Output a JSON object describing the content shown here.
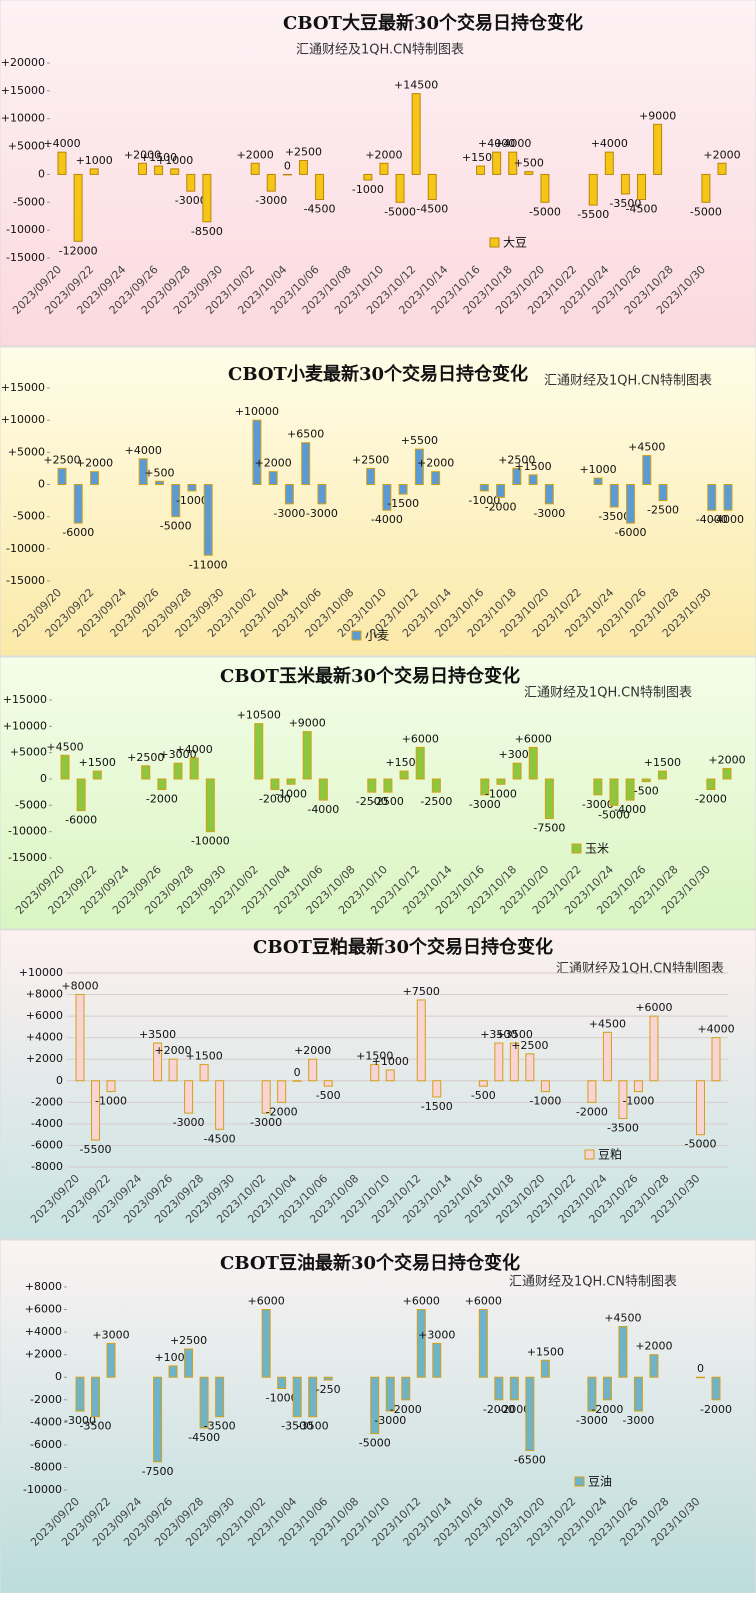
{
  "chart_data": [
    {
      "type": "bar",
      "title": "CBOT大豆最新30个交易日持仓变化",
      "subtitle": "汇通财经及1QH.CN特制图表",
      "categories": [
        "2023/09/20",
        null,
        "2023/09/22",
        null,
        "2023/09/24",
        null,
        "2023/09/26",
        null,
        "2023/09/28",
        null,
        "2023/09/30",
        null,
        "2023/10/02",
        null,
        "2023/10/04",
        null,
        "2023/10/06",
        null,
        "2023/10/08",
        null,
        "2023/10/10",
        null,
        "2023/10/12",
        null,
        "2023/10/14",
        null,
        "2023/10/16",
        null,
        "2023/10/18",
        null,
        "2023/10/20",
        null,
        "2023/10/22",
        null,
        "2023/10/24",
        null,
        "2023/10/26",
        null,
        "2023/10/28",
        null,
        "2023/10/30",
        null
      ],
      "series": [
        {
          "name": "大豆",
          "color": "#f5c518",
          "border": "#b8860b",
          "values": [
            4000,
            -12000,
            1000,
            null,
            null,
            2000,
            1500,
            1000,
            -3000,
            -8500,
            null,
            null,
            2000,
            -3000,
            0,
            2500,
            -4500,
            null,
            null,
            -1000,
            2000,
            -5000,
            14500,
            -4500,
            null,
            null,
            1500,
            4000,
            4000,
            500,
            -5000,
            null,
            null,
            -5500,
            4000,
            -3500,
            -4500,
            9000,
            null,
            null,
            -5000,
            2000
          ],
          "value_labels": [
            "+4000",
            "-12000",
            "+1000",
            null,
            null,
            "+2000",
            "+1500",
            "+1000",
            "-3000",
            "-8500",
            null,
            null,
            "+2000",
            "-3000",
            "0",
            "+2500",
            "-4500",
            null,
            null,
            "-1000",
            "+2000",
            "-5000",
            "+14500",
            "-4500",
            null,
            null,
            "+1500",
            "+4000",
            "+4000",
            "+500",
            "-5000",
            null,
            null,
            "-5500",
            "+4000",
            "-3500",
            "-4500",
            "+9000",
            null,
            null,
            "-5000",
            "+2000"
          ]
        }
      ],
      "ylim": [
        -15000,
        20000
      ],
      "yticks": [
        {
          "value": 20000,
          "label": "+20000"
        },
        {
          "value": 15000,
          "label": "+15000"
        },
        {
          "value": 10000,
          "label": "+10000"
        },
        {
          "value": 5000,
          "label": "+5000"
        },
        0,
        -5000,
        -10000,
        -15000
      ],
      "grid": false
    },
    {
      "type": "bar",
      "title": "CBOT小麦最新30个交易日持仓变化",
      "subtitle": "汇通财经及1QH.CN特制图表",
      "categories": [
        "2023/09/20",
        null,
        "2023/09/22",
        null,
        "2023/09/24",
        null,
        "2023/09/26",
        null,
        "2023/09/28",
        null,
        "2023/09/30",
        null,
        "2023/10/02",
        null,
        "2023/10/04",
        null,
        "2023/10/06",
        null,
        "2023/10/08",
        null,
        "2023/10/10",
        null,
        "2023/10/12",
        null,
        "2023/10/14",
        null,
        "2023/10/16",
        null,
        "2023/10/18",
        null,
        "2023/10/20",
        null,
        "2023/10/22",
        null,
        "2023/10/24",
        null,
        "2023/10/26",
        null,
        "2023/10/28",
        null,
        "2023/10/30",
        null
      ],
      "series": [
        {
          "name": "小麦",
          "color": "#5b9bd5",
          "border": "#d4a017",
          "values": [
            2500,
            -6000,
            2000,
            null,
            null,
            4000,
            500,
            -5000,
            -1000,
            -11000,
            null,
            null,
            10000,
            2000,
            -3000,
            6500,
            -3000,
            null,
            null,
            2500,
            -4000,
            -1500,
            5500,
            2000,
            null,
            null,
            -1000,
            -2000,
            2500,
            1500,
            -3000,
            null,
            null,
            1000,
            -3500,
            -6000,
            4500,
            -2500,
            null,
            null,
            -4000,
            -4000
          ],
          "value_labels": [
            "+2500",
            "-6000",
            "+2000",
            null,
            null,
            "+4000",
            "+500",
            "-5000",
            "-1000",
            "-11000",
            null,
            null,
            "+10000",
            "+2000",
            "-3000",
            "+6500",
            "-3000",
            null,
            null,
            "+2500",
            "-4000",
            "-1500",
            "+5500",
            "+2000",
            null,
            null,
            "-1000",
            "-2000",
            "+2500",
            "+1500",
            "-3000",
            null,
            null,
            "+1000",
            "-3500",
            "-6000",
            "+4500",
            "-2500",
            null,
            null,
            "-4000",
            "-4000"
          ]
        }
      ],
      "ylim": [
        -15000,
        15000
      ],
      "yticks": [
        {
          "value": 15000,
          "label": "+15000"
        },
        {
          "value": 10000,
          "label": "+10000"
        },
        {
          "value": 5000,
          "label": "+5000"
        },
        0,
        -5000,
        -10000,
        -15000
      ],
      "grid": false
    },
    {
      "type": "bar",
      "title": "CBOT玉米最新30个交易日持仓变化",
      "subtitle": "汇通财经及1QH.CN特制图表",
      "categories": [
        "2023/09/20",
        null,
        "2023/09/22",
        null,
        "2023/09/24",
        null,
        "2023/09/26",
        null,
        "2023/09/28",
        null,
        "2023/09/30",
        null,
        "2023/10/02",
        null,
        "2023/10/04",
        null,
        "2023/10/06",
        null,
        "2023/10/08",
        null,
        "2023/10/10",
        null,
        "2023/10/12",
        null,
        "2023/10/14",
        null,
        "2023/10/16",
        null,
        "2023/10/18",
        null,
        "2023/10/20",
        null,
        "2023/10/22",
        null,
        "2023/10/24",
        null,
        "2023/10/26",
        null,
        "2023/10/28",
        null,
        "2023/10/30",
        null
      ],
      "series": [
        {
          "name": "玉米",
          "color": "#8dc63f",
          "border": "#d4a017",
          "values": [
            4500,
            -6000,
            1500,
            null,
            null,
            2500,
            -2000,
            3000,
            4000,
            -10000,
            null,
            null,
            10500,
            -2000,
            -1000,
            9000,
            -4000,
            null,
            null,
            -2500,
            -2500,
            1500,
            6000,
            -2500,
            null,
            null,
            -3000,
            -1000,
            3000,
            6000,
            -7500,
            null,
            null,
            -3000,
            -5000,
            -4000,
            -500,
            1500,
            null,
            null,
            -2000,
            2000
          ],
          "value_labels": [
            "+4500",
            "-6000",
            "+1500",
            null,
            null,
            "+2500",
            "-2000",
            "+3000",
            "+4000",
            "-10000",
            null,
            null,
            "+10500",
            "-2000",
            "-1000",
            "+9000",
            "-4000",
            null,
            null,
            "-2500",
            "-2500",
            "+1500",
            "+6000",
            "-2500",
            null,
            null,
            "-3000",
            "-1000",
            "+3000",
            "+6000",
            "-7500",
            null,
            null,
            "-3000",
            "-5000",
            "-4000",
            "-500",
            "+1500",
            null,
            null,
            "-2000",
            "+2000"
          ]
        }
      ],
      "ylim": [
        -15000,
        15000
      ],
      "yticks": [
        {
          "value": 15000,
          "label": "+15000"
        },
        {
          "value": 10000,
          "label": "+10000"
        },
        {
          "value": 5000,
          "label": "+5000"
        },
        0,
        -5000,
        -10000,
        -15000
      ],
      "grid": false
    },
    {
      "type": "bar",
      "title": "CBOT豆粕最新30个交易日持仓变化",
      "subtitle": "汇通财经及1QH.CN特制图表",
      "categories": [
        "2023/09/20",
        null,
        "2023/09/22",
        null,
        "2023/09/24",
        null,
        "2023/09/26",
        null,
        "2023/09/28",
        null,
        "2023/09/30",
        null,
        "2023/10/02",
        null,
        "2023/10/04",
        null,
        "2023/10/06",
        null,
        "2023/10/08",
        null,
        "2023/10/10",
        null,
        "2023/10/12",
        null,
        "2023/10/14",
        null,
        "2023/10/16",
        null,
        "2023/10/18",
        null,
        "2023/10/20",
        null,
        "2023/10/22",
        null,
        "2023/10/24",
        null,
        "2023/10/26",
        null,
        "2023/10/28",
        null,
        "2023/10/30",
        null
      ],
      "series": [
        {
          "name": "豆粕",
          "color": "#f8d4d4",
          "border": "#d4a017",
          "values": [
            8000,
            -5500,
            -1000,
            null,
            null,
            3500,
            2000,
            -3000,
            1500,
            -4500,
            null,
            null,
            -3000,
            -2000,
            0,
            2000,
            -500,
            null,
            null,
            1500,
            1000,
            null,
            7500,
            -1500,
            null,
            null,
            -500,
            3500,
            3500,
            2500,
            -1000,
            null,
            null,
            -2000,
            4500,
            -3500,
            -1000,
            6000,
            null,
            null,
            -5000,
            4000
          ],
          "value_labels": [
            "+8000",
            "-5500",
            "-1000",
            null,
            null,
            "+3500",
            "+2000",
            "-3000",
            "+1500",
            "-4500",
            null,
            null,
            "-3000",
            "-2000",
            "0",
            "+2000",
            "-500",
            null,
            null,
            "+1500",
            "+1000",
            null,
            "+7500",
            "-1500",
            null,
            null,
            "-500",
            "+3500",
            "+3500",
            "+2500",
            "-1000",
            null,
            null,
            "-2000",
            "+4500",
            "-3500",
            "-1000",
            "+6000",
            null,
            null,
            "-5000",
            "+4000"
          ]
        }
      ],
      "ylim": [
        -8000,
        10000
      ],
      "yticks": [
        {
          "value": 10000,
          "label": "+10000"
        },
        {
          "value": 8000,
          "label": "+8000"
        },
        {
          "value": 6000,
          "label": "+6000"
        },
        {
          "value": 4000,
          "label": "+4000"
        },
        {
          "value": 2000,
          "label": "+2000"
        },
        0,
        -2000,
        -4000,
        -6000,
        -8000
      ],
      "grid": true
    },
    {
      "type": "bar",
      "title": "CBOT豆油最新30个交易日持仓变化",
      "subtitle": "汇通财经及1QH.CN特制图表",
      "categories": [
        "2023/09/20",
        null,
        "2023/09/22",
        null,
        "2023/09/24",
        null,
        "2023/09/26",
        null,
        "2023/09/28",
        null,
        "2023/09/30",
        null,
        "2023/10/02",
        null,
        "2023/10/04",
        null,
        "2023/10/06",
        null,
        "2023/10/08",
        null,
        "2023/10/10",
        null,
        "2023/10/12",
        null,
        "2023/10/14",
        null,
        "2023/10/16",
        null,
        "2023/10/18",
        null,
        "2023/10/20",
        null,
        "2023/10/22",
        null,
        "2023/10/24",
        null,
        "2023/10/26",
        null,
        "2023/10/28",
        null,
        "2023/10/30",
        null
      ],
      "series": [
        {
          "name": "豆油",
          "color": "#6fb3c8",
          "border": "#d4a017",
          "values": [
            -3000,
            -3500,
            3000,
            null,
            null,
            -7500,
            1000,
            2500,
            -4500,
            -3500,
            null,
            null,
            6000,
            -1000,
            -3500,
            -3500,
            -250,
            null,
            null,
            -5000,
            -3000,
            -2000,
            6000,
            3000,
            null,
            null,
            6000,
            -2000,
            -2000,
            -6500,
            1500,
            null,
            null,
            -3000,
            -2000,
            4500,
            -3000,
            2000,
            null,
            null,
            0,
            -2000
          ],
          "value_labels": [
            "-3000",
            "-3500",
            "+3000",
            null,
            null,
            "-7500",
            "+1000",
            "+2500",
            "-4500",
            "-3500",
            null,
            null,
            "+6000",
            "-1000",
            "-3500",
            "-3500",
            "-250",
            null,
            null,
            "-5000",
            "-3000",
            "-2000",
            "+6000",
            "+3000",
            null,
            null,
            "+6000",
            "-2000",
            "-2000",
            "-6500",
            "+1500",
            null,
            null,
            "-3000",
            "-2000",
            "+4500",
            "-3000",
            "+2000",
            null,
            null,
            "0",
            "-2000"
          ]
        }
      ],
      "ylim": [
        -10000,
        8000
      ],
      "yticks": [
        {
          "value": 8000,
          "label": "+8000"
        },
        {
          "value": 6000,
          "label": "+6000"
        },
        {
          "value": 4000,
          "label": "+4000"
        },
        {
          "value": 2000,
          "label": "+2000"
        },
        0,
        -2000,
        -4000,
        -6000,
        -8000,
        -10000
      ],
      "grid": false
    }
  ]
}
